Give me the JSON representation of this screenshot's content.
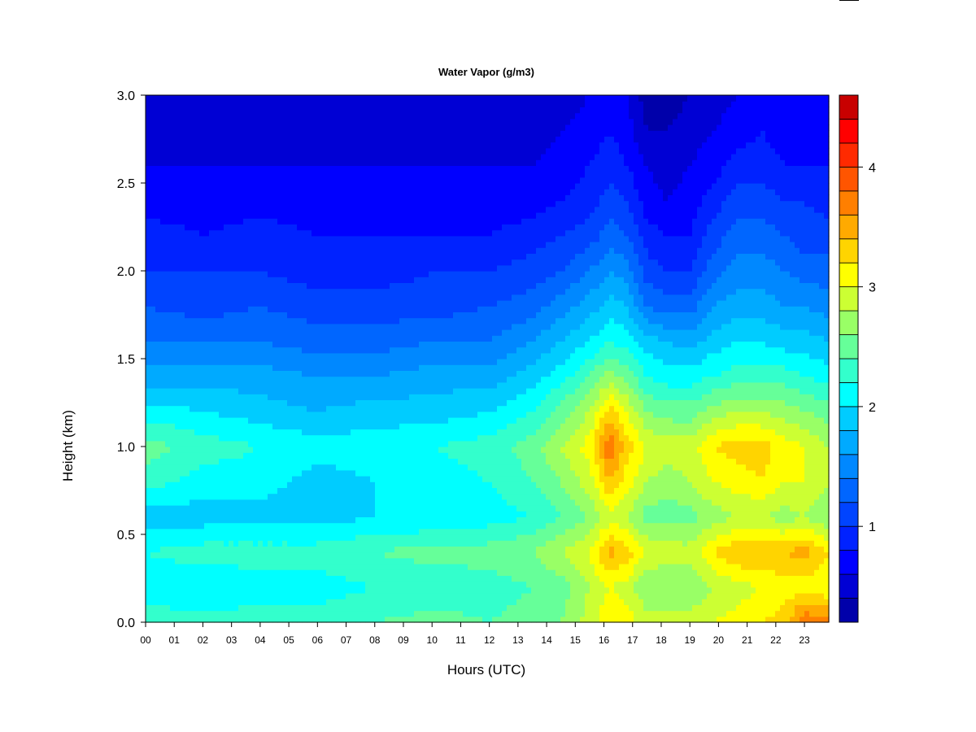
{
  "chart_data": {
    "type": "heatmap",
    "title": "Water Vapor (g/m3)",
    "xlabel": "Hours (UTC)",
    "ylabel": "Height (km)",
    "x_tick_labels": [
      "00",
      "01",
      "02",
      "03",
      "04",
      "05",
      "06",
      "07",
      "08",
      "09",
      "10",
      "11",
      "12",
      "13",
      "14",
      "15",
      "16",
      "17",
      "18",
      "19",
      "20",
      "21",
      "22",
      "23"
    ],
    "x_tick_values": [
      0,
      1,
      2,
      3,
      4,
      5,
      6,
      7,
      8,
      9,
      10,
      11,
      12,
      13,
      14,
      15,
      16,
      17,
      18,
      19,
      20,
      21,
      22,
      23
    ],
    "xlim": [
      0,
      23.85
    ],
    "y_tick_labels": [
      "0.0",
      "0.5",
      "1.0",
      "1.5",
      "2.0",
      "2.5",
      "3.0"
    ],
    "y_tick_values": [
      0.0,
      0.5,
      1.0,
      1.5,
      2.0,
      2.5,
      3.0
    ],
    "ylim": [
      0,
      3.0
    ],
    "heights": [
      0.0,
      0.2,
      0.4,
      0.6,
      0.8,
      1.0,
      1.2,
      1.4,
      1.6,
      1.8,
      2.0,
      2.2,
      2.4,
      2.6,
      2.8,
      3.0
    ],
    "hours": [
      0,
      2,
      4,
      6,
      8,
      10,
      12,
      13.5,
      14.5,
      15.5,
      16.2,
      16.8,
      17.5,
      18.2,
      19,
      19.8,
      20.7,
      21.5,
      22.3,
      23,
      23.85
    ],
    "values": [
      [
        2.3,
        2.3,
        2.3,
        2.3,
        2.4,
        2.5,
        2.4,
        2.5,
        2.6,
        2.9,
        3.2,
        3.1,
        2.9,
        2.9,
        2.9,
        3.0,
        3.1,
        3.2,
        3.3,
        3.8,
        3.7
      ],
      [
        2.1,
        2.0,
        2.1,
        2.1,
        2.2,
        2.2,
        2.3,
        2.4,
        2.5,
        2.8,
        3.0,
        2.9,
        2.6,
        2.6,
        2.6,
        2.8,
        2.9,
        3.0,
        3.1,
        3.1,
        3.0
      ],
      [
        2.2,
        2.3,
        2.3,
        2.3,
        2.4,
        2.5,
        2.5,
        2.6,
        2.8,
        3.0,
        3.5,
        3.3,
        3.0,
        2.9,
        2.9,
        3.2,
        3.4,
        3.4,
        3.4,
        3.5,
        3.2
      ],
      [
        1.9,
        1.9,
        1.9,
        1.9,
        2.0,
        2.0,
        2.1,
        2.2,
        2.4,
        2.6,
        2.9,
        2.8,
        2.5,
        2.5,
        2.5,
        2.7,
        2.8,
        2.8,
        2.7,
        2.8,
        2.6
      ],
      [
        2.3,
        2.1,
        2.1,
        1.9,
        2.0,
        2.1,
        2.2,
        2.4,
        2.6,
        2.9,
        3.4,
        3.1,
        2.8,
        2.7,
        2.8,
        3.0,
        3.1,
        3.2,
        3.0,
        3.0,
        2.8
      ],
      [
        2.5,
        2.3,
        2.2,
        2.1,
        2.1,
        2.2,
        2.3,
        2.5,
        2.8,
        3.1,
        3.8,
        3.3,
        3.0,
        2.9,
        2.9,
        3.2,
        3.3,
        3.3,
        3.1,
        3.0,
        2.8
      ],
      [
        2.1,
        2.0,
        1.9,
        1.8,
        1.9,
        1.9,
        2.0,
        2.2,
        2.5,
        2.8,
        3.3,
        3.0,
        2.6,
        2.5,
        2.5,
        2.7,
        2.8,
        2.8,
        2.7,
        2.6,
        2.5
      ],
      [
        1.7,
        1.7,
        1.7,
        1.6,
        1.6,
        1.7,
        1.7,
        1.9,
        2.1,
        2.4,
        2.7,
        2.5,
        2.2,
        2.1,
        2.1,
        2.2,
        2.3,
        2.3,
        2.3,
        2.2,
        2.1
      ],
      [
        1.4,
        1.4,
        1.4,
        1.3,
        1.3,
        1.4,
        1.4,
        1.6,
        1.8,
        2.0,
        2.2,
        2.1,
        1.9,
        1.8,
        1.7,
        1.9,
        2.0,
        2.0,
        1.9,
        1.9,
        1.8
      ],
      [
        1.2,
        1.1,
        1.2,
        1.1,
        1.1,
        1.1,
        1.2,
        1.3,
        1.5,
        1.7,
        1.9,
        1.8,
        1.4,
        1.3,
        1.3,
        1.6,
        1.7,
        1.7,
        1.6,
        1.6,
        1.5
      ],
      [
        1.0,
        1.0,
        1.0,
        0.9,
        0.9,
        1.0,
        1.0,
        1.1,
        1.2,
        1.4,
        1.6,
        1.5,
        1.1,
        1.0,
        1.0,
        1.3,
        1.5,
        1.5,
        1.4,
        1.3,
        1.3
      ],
      [
        0.9,
        0.8,
        0.9,
        0.8,
        0.8,
        0.8,
        0.8,
        0.9,
        1.0,
        1.1,
        1.3,
        1.2,
        0.9,
        0.8,
        0.8,
        1.1,
        1.3,
        1.3,
        1.2,
        1.1,
        1.1
      ],
      [
        0.7,
        0.7,
        0.7,
        0.7,
        0.7,
        0.7,
        0.7,
        0.7,
        0.8,
        0.9,
        1.1,
        1.0,
        0.7,
        0.6,
        0.7,
        0.9,
        1.1,
        1.1,
        1.0,
        1.0,
        0.9
      ],
      [
        0.6,
        0.6,
        0.6,
        0.6,
        0.6,
        0.6,
        0.6,
        0.6,
        0.7,
        0.8,
        0.9,
        0.8,
        0.6,
        0.5,
        0.6,
        0.7,
        0.9,
        0.9,
        0.8,
        0.8,
        0.8
      ],
      [
        0.5,
        0.5,
        0.5,
        0.5,
        0.5,
        0.5,
        0.5,
        0.5,
        0.6,
        0.7,
        0.8,
        0.7,
        0.4,
        0.4,
        0.5,
        0.6,
        0.7,
        0.8,
        0.7,
        0.7,
        0.7
      ],
      [
        0.4,
        0.4,
        0.4,
        0.4,
        0.4,
        0.4,
        0.4,
        0.4,
        0.5,
        0.6,
        0.7,
        0.6,
        0.3,
        0.3,
        0.4,
        0.5,
        0.6,
        0.7,
        0.6,
        0.6,
        0.6
      ]
    ],
    "colorbar": {
      "levels": [
        0.2,
        0.4,
        0.6,
        0.8,
        1.0,
        1.2,
        1.4,
        1.6,
        1.8,
        2.0,
        2.2,
        2.4,
        2.6,
        2.8,
        3.0,
        3.2,
        3.4,
        3.6,
        3.8,
        4.0,
        4.2,
        4.4,
        4.6
      ],
      "colors": [
        "#000080",
        "#0000aa",
        "#0000d4",
        "#0000ff",
        "#0022ff",
        "#0044ff",
        "#0066ff",
        "#0088ff",
        "#00aaff",
        "#00ccff",
        "#00ffff",
        "#33ffcc",
        "#66ff99",
        "#99ff66",
        "#ccff33",
        "#ffff00",
        "#ffd400",
        "#ffaa00",
        "#ff7f00",
        "#ff5500",
        "#ff2a00",
        "#ff0000",
        "#c80000",
        "#800000"
      ],
      "tick_labels": [
        "1",
        "2",
        "3",
        "4"
      ],
      "tick_values": [
        1,
        2,
        3,
        4
      ]
    },
    "grid": false
  }
}
